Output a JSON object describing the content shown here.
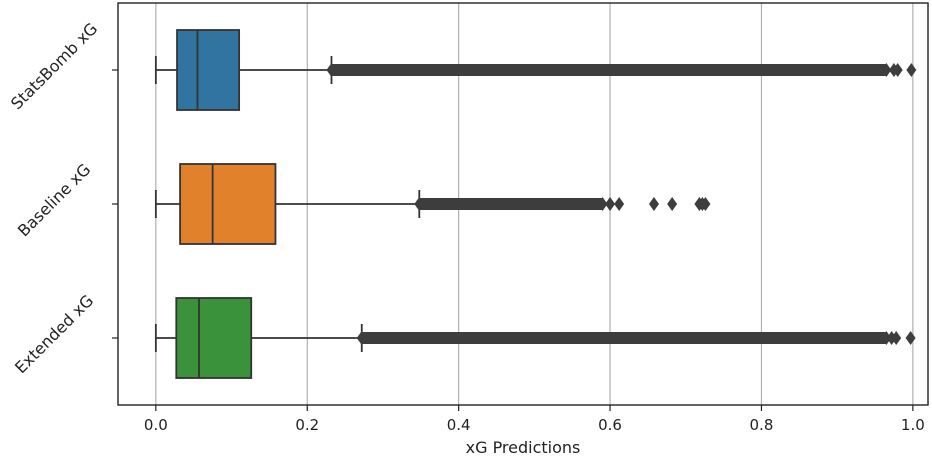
{
  "chart_data": {
    "type": "boxplot",
    "orientation": "horizontal",
    "title": "",
    "xlabel": "xG Predictions",
    "ylabel": "",
    "xlim": [
      -0.05,
      1.02
    ],
    "xticks": [
      "0.0",
      "0.2",
      "0.4",
      "0.6",
      "0.8",
      "1.0"
    ],
    "grid": "vertical",
    "legend": "none",
    "series": [
      {
        "name": "StatsBomb xG",
        "color": "#3274a1",
        "whisker_low": 0.0,
        "q1": 0.028,
        "median": 0.055,
        "q3": 0.11,
        "whisker_high": 0.232,
        "outlier_dense_range": [
          0.232,
          0.965
        ],
        "outliers_sparse": [
          0.975,
          0.98,
          0.998
        ]
      },
      {
        "name": "Baseline xG",
        "color": "#e1812c",
        "whisker_low": 0.0,
        "q1": 0.032,
        "median": 0.075,
        "q3": 0.158,
        "whisker_high": 0.348,
        "outlier_dense_range": [
          0.348,
          0.59
        ],
        "outliers_sparse": [
          0.6,
          0.612,
          0.658,
          0.682,
          0.718,
          0.722,
          0.726
        ]
      },
      {
        "name": "Extended xG",
        "color": "#3a923a",
        "whisker_low": 0.0,
        "q1": 0.027,
        "median": 0.057,
        "q3": 0.126,
        "whisker_high": 0.272,
        "outlier_dense_range": [
          0.272,
          0.965
        ],
        "outliers_sparse": [
          0.972,
          0.978,
          0.997
        ]
      }
    ]
  }
}
